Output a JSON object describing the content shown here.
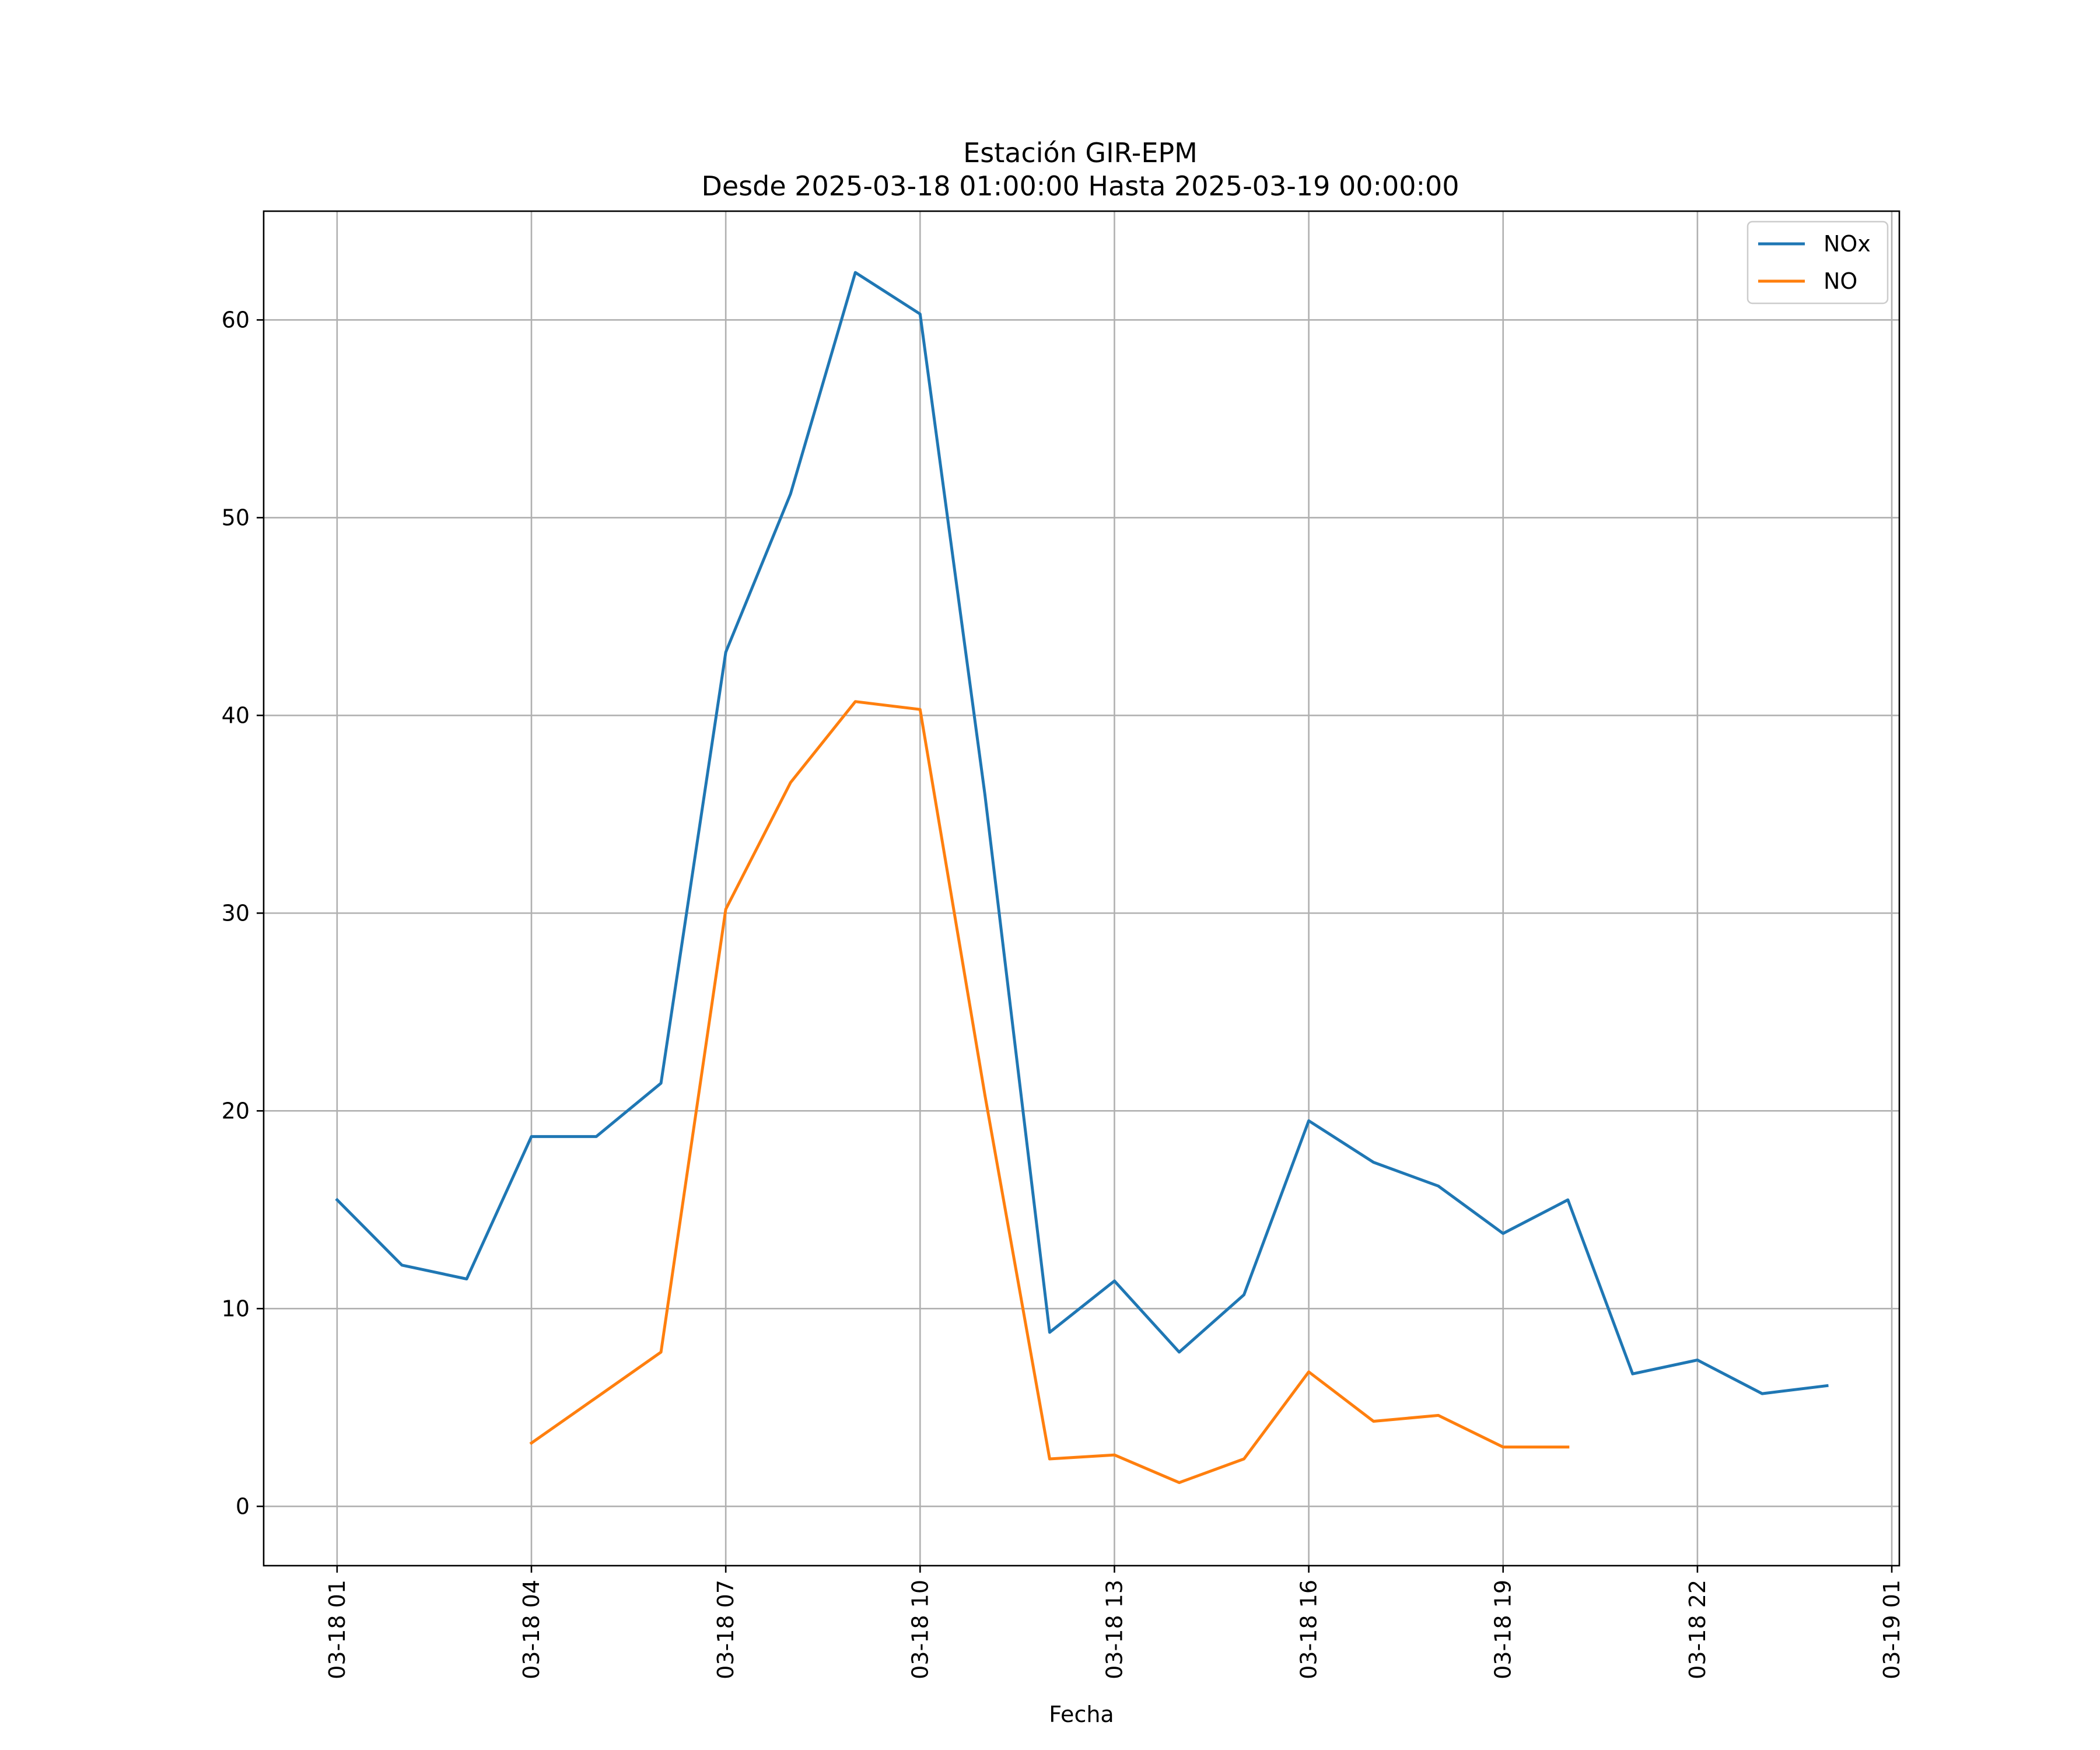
{
  "chart_data": {
    "type": "line",
    "title": "Estación GIR-EPM",
    "subtitle": "Desde 2025-03-18 01:00:00 Hasta 2025-03-19 00:00:00",
    "xlabel": "Fecha",
    "ylabel": "",
    "xlim": [
      "2025-03-17 23:52",
      "2025-03-19 01:07"
    ],
    "ylim": [
      -3,
      65.5
    ],
    "grid": true,
    "legend_position": "top-right",
    "x_ticks": [
      {
        "value": "2025-03-18 01:00",
        "label": "03-18 01"
      },
      {
        "value": "2025-03-18 04:00",
        "label": "03-18 04"
      },
      {
        "value": "2025-03-18 07:00",
        "label": "03-18 07"
      },
      {
        "value": "2025-03-18 10:00",
        "label": "03-18 10"
      },
      {
        "value": "2025-03-18 13:00",
        "label": "03-18 13"
      },
      {
        "value": "2025-03-18 16:00",
        "label": "03-18 16"
      },
      {
        "value": "2025-03-18 19:00",
        "label": "03-18 19"
      },
      {
        "value": "2025-03-18 22:00",
        "label": "03-18 22"
      },
      {
        "value": "2025-03-19 01:00",
        "label": "03-19 01"
      }
    ],
    "y_ticks": [
      0,
      10,
      20,
      30,
      40,
      50,
      60
    ],
    "x": [
      "2025-03-18 01:00",
      "2025-03-18 02:00",
      "2025-03-18 03:00",
      "2025-03-18 04:00",
      "2025-03-18 05:00",
      "2025-03-18 06:00",
      "2025-03-18 07:00",
      "2025-03-18 08:00",
      "2025-03-18 09:00",
      "2025-03-18 10:00",
      "2025-03-18 11:00",
      "2025-03-18 12:00",
      "2025-03-18 13:00",
      "2025-03-18 14:00",
      "2025-03-18 15:00",
      "2025-03-18 16:00",
      "2025-03-18 17:00",
      "2025-03-18 18:00",
      "2025-03-18 19:00",
      "2025-03-18 20:00",
      "2025-03-18 21:00",
      "2025-03-18 22:00",
      "2025-03-18 23:00",
      "2025-03-19 00:00"
    ],
    "series": [
      {
        "name": "NOx",
        "color": "#1f77b4",
        "values": [
          15.5,
          12.2,
          11.5,
          18.7,
          18.7,
          21.4,
          43.2,
          51.2,
          62.4,
          60.3,
          36.0,
          8.8,
          11.4,
          7.8,
          10.7,
          19.5,
          17.4,
          16.2,
          13.8,
          15.5,
          6.7,
          7.4,
          5.7,
          6.1
        ]
      },
      {
        "name": "NO",
        "color": "#ff7f0e",
        "values": [
          null,
          null,
          null,
          3.2,
          5.5,
          7.8,
          30.2,
          36.6,
          40.7,
          40.3,
          20.8,
          2.4,
          2.6,
          1.2,
          2.4,
          6.8,
          4.3,
          4.6,
          3.0,
          3.0,
          null,
          null,
          null,
          null
        ]
      }
    ]
  }
}
